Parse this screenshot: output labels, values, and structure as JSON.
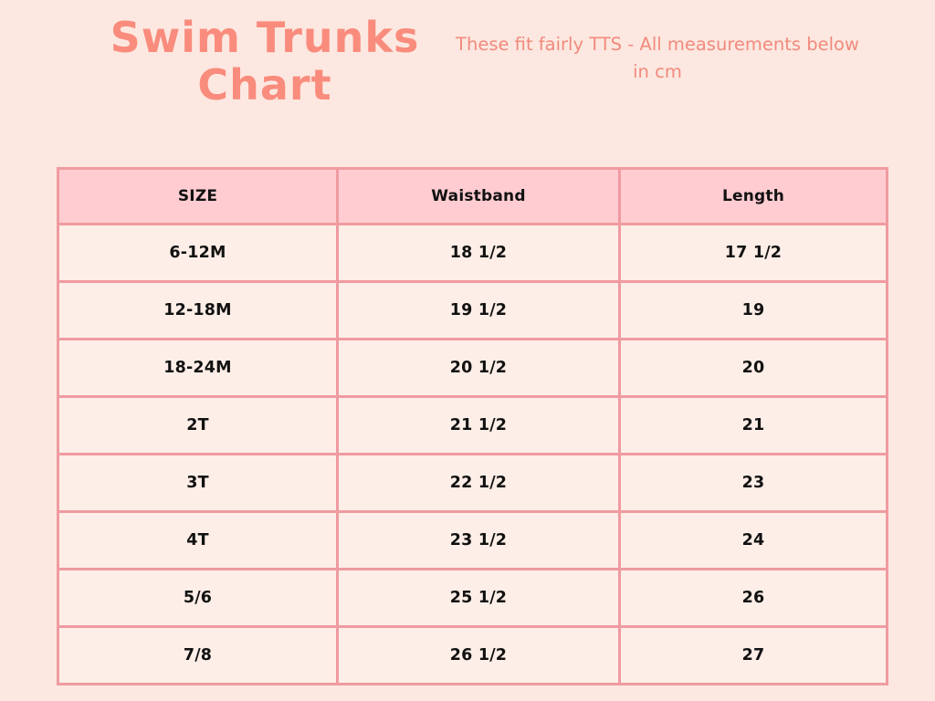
{
  "header": {
    "title_line1": "Swim Trunks",
    "title_line2": "Chart",
    "subtitle": "These fit fairly TTS - All measurements below in cm"
  },
  "colors": {
    "page_background": "#fce8e0",
    "title_text": "#f98c7d",
    "subtitle_text": "#f28a7d",
    "table_border": "#ef9ba0",
    "header_cell_background": "#ffccd1",
    "body_cell_background": "#fdeee7",
    "table_text": "#111111"
  },
  "chart_data": {
    "type": "table",
    "title": "Swim Trunks Chart",
    "annotation": "These fit fairly TTS - All measurements below in cm",
    "unit": "cm",
    "columns": [
      "SIZE",
      "Waistband",
      "Length"
    ],
    "rows": [
      [
        "6-12M",
        "18 1/2",
        "17 1/2"
      ],
      [
        "12-18M",
        "19 1/2",
        "19"
      ],
      [
        "18-24M",
        "20 1/2",
        "20"
      ],
      [
        "2T",
        "21 1/2",
        "21"
      ],
      [
        "3T",
        "22 1/2",
        "23"
      ],
      [
        "4T",
        "23 1/2",
        "24"
      ],
      [
        "5/6",
        "25 1/2",
        "26"
      ],
      [
        "7/8",
        "26 1/2",
        "27"
      ]
    ]
  }
}
